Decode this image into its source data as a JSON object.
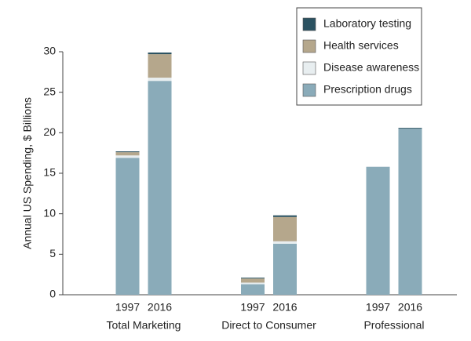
{
  "chart_data": {
    "type": "stacked-bar",
    "y_label": "Annual US Spending, $ Billions",
    "categories": [
      "1997",
      "2016",
      "1997",
      "2016",
      "1997",
      "2016"
    ],
    "groups": [
      "Total Marketing",
      "Direct to Consumer",
      "Professional"
    ],
    "series": [
      {
        "name": "Prescription drugs",
        "color": "#8aabb9",
        "values": [
          16.9,
          26.4,
          1.3,
          6.3,
          15.8,
          20.5
        ]
      },
      {
        "name": "Disease awareness",
        "color": "#e8eef0",
        "values": [
          0.3,
          0.4,
          0.2,
          0.3,
          0,
          0
        ]
      },
      {
        "name": "Health services",
        "color": "#b5a78c",
        "values": [
          0.4,
          2.9,
          0.5,
          3.0,
          0,
          0
        ]
      },
      {
        "name": "Laboratory testing",
        "color": "#2b5261",
        "values": [
          0.1,
          0.2,
          0.1,
          0.2,
          0,
          0.1
        ]
      }
    ],
    "ylim": [
      0,
      30
    ],
    "yticks": [
      0,
      5,
      10,
      15,
      20,
      25,
      30
    ],
    "grid": false,
    "legend": "top-right"
  }
}
